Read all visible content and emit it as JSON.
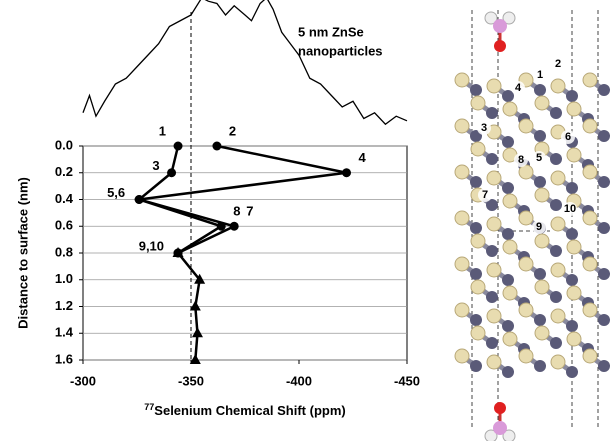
{
  "chart_data": {
    "type": "line",
    "annotation": [
      "5 nm ZnSe",
      "nanoparticles"
    ],
    "x_label_superscript": "77",
    "x_label": "Selenium Chemical Shift (ppm)",
    "y_label": "Distance to surface (nm)",
    "xlim": [
      -300,
      -450
    ],
    "xticks": [
      -300,
      -350,
      -400,
      -450
    ],
    "ylim": [
      0,
      1.6
    ],
    "yticks": [
      {
        "value": 0,
        "label": "0.0"
      },
      {
        "value": 0.2,
        "label": "0.2"
      },
      {
        "value": 0.4,
        "label": "0.4"
      },
      {
        "value": 0.6,
        "label": "0.6"
      },
      {
        "value": 0.8,
        "label": "0.8"
      },
      {
        "value": 1.0,
        "label": "1.0"
      },
      {
        "value": 1.2,
        "label": "1.2"
      },
      {
        "value": 1.4,
        "label": "1.4"
      },
      {
        "value": 1.6,
        "label": "1.6"
      }
    ],
    "grid": true,
    "reference_line": -350,
    "series": [
      {
        "marker": "circle",
        "color": "#000000",
        "x": [
          -362,
          -422,
          -326,
          -370,
          -344
        ],
        "values": [
          0,
          0.2,
          0.4,
          0.6,
          0.8
        ],
        "labels": [
          "2",
          "4",
          "5,6",
          "7",
          "9,10"
        ]
      },
      {
        "marker": "circle",
        "color": "#000000",
        "x": [
          -344,
          -341,
          -326,
          -364,
          -344
        ],
        "values": [
          0,
          0.2,
          0.4,
          0.6,
          0.8
        ],
        "labels": [
          "1",
          "3",
          null,
          "8",
          null
        ]
      },
      {
        "marker": "triangle",
        "color": "#000000",
        "x": [
          -344,
          -354,
          -352,
          -353,
          -352
        ],
        "values": [
          0.8,
          1.0,
          1.2,
          1.4,
          1.6
        ]
      }
    ],
    "spectrum": {
      "x": [
        -300,
        -303,
        -306,
        -310,
        -315,
        -320,
        -325,
        -330,
        -335,
        -340,
        -345,
        -350,
        -355,
        -358,
        -362,
        -366,
        -370,
        -375,
        -378,
        -382,
        -385,
        -388,
        -392,
        -396,
        -400,
        -405,
        -410,
        -415,
        -420,
        -425,
        -430,
        -435,
        -440,
        -445,
        -450
      ],
      "values": [
        15,
        30,
        12,
        25,
        40,
        45,
        55,
        65,
        75,
        90,
        95,
        100,
        115,
        112,
        110,
        100,
        108,
        100,
        95,
        110,
        115,
        105,
        85,
        75,
        65,
        45,
        40,
        30,
        20,
        25,
        10,
        15,
        5,
        12,
        8
      ]
    }
  },
  "structure_labels": [
    "1",
    "2",
    "3",
    "4",
    "5",
    "6",
    "7",
    "8",
    "9",
    "10"
  ]
}
